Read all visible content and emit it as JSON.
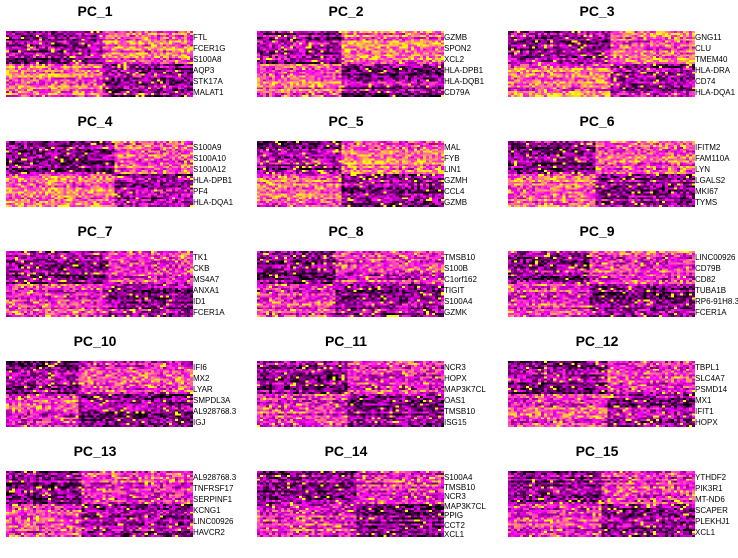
{
  "chart_data": {
    "type": "heatmap",
    "colors": {
      "low": "#000000",
      "mid": "#ff00ff",
      "high": "#ffff00"
    },
    "panels": [
      {
        "title": "PC_1",
        "genes": [
          "FTL",
          "FCER1G",
          "S100A8",
          "AQP3",
          "STK17A",
          "MALAT1"
        ]
      },
      {
        "title": "PC_2",
        "genes": [
          "GZMB",
          "SPON2",
          "XCL2",
          "HLA-DPB1",
          "HLA-DQB1",
          "CD79A"
        ]
      },
      {
        "title": "PC_3",
        "genes": [
          "GNG11",
          "CLU",
          "TMEM40",
          "HLA-DRA",
          "CD74",
          "HLA-DQA1"
        ]
      },
      {
        "title": "PC_4",
        "genes": [
          "S100A9",
          "S100A10",
          "S100A12",
          "HLA-DPB1",
          "PF4",
          "HLA-DQA1"
        ]
      },
      {
        "title": "PC_5",
        "genes": [
          "MAL",
          "FYB",
          "LIN1",
          "GZMH",
          "CCL4",
          "GZMB"
        ]
      },
      {
        "title": "PC_6",
        "genes": [
          "IFITM2",
          "FAM110A",
          "LYN",
          "LGALS2",
          "MKI67",
          "TYMS"
        ]
      },
      {
        "title": "PC_7",
        "genes": [
          "TK1",
          "CKB",
          "MS4A7",
          "ANXA1",
          "ID1",
          "FCER1A"
        ]
      },
      {
        "title": "PC_8",
        "genes": [
          "TMSB10",
          "S100B",
          "C1orf162",
          "TIGIT",
          "S100A4",
          "GZMK"
        ]
      },
      {
        "title": "PC_9",
        "genes": [
          "LINC00926",
          "CD79B",
          "CD82",
          "TUBA1B",
          "RP6-91H8.3",
          "FCER1A"
        ]
      },
      {
        "title": "PC_10",
        "genes": [
          "IFI6",
          "MX2",
          "LYAR",
          "SMPDL3A",
          "AL928768.3",
          "IGJ"
        ]
      },
      {
        "title": "PC_11",
        "genes": [
          "NCR3",
          "HOPX",
          "MAP3K7CL",
          "OAS1",
          "TMSB10",
          "ISG15"
        ]
      },
      {
        "title": "PC_12",
        "genes": [
          "TBPL1",
          "SLC4A7",
          "PSMD14",
          "MX1",
          "IFIT1",
          "HOPX"
        ]
      },
      {
        "title": "PC_13",
        "genes": [
          "AL928768.3",
          "TNFRSF17",
          "SERPINF1",
          "KCNG1",
          "LINC00926",
          "HAVCR2"
        ]
      },
      {
        "title": "PC_14",
        "genes": [
          "S100A4",
          "TMSB10",
          "NCR3",
          "MAP3K7CL",
          "PPIG",
          "CCT2",
          "XCL1"
        ]
      },
      {
        "title": "PC_15",
        "genes": [
          "YTHDF2",
          "PIK3R1",
          "MT-ND6",
          "SCAPER",
          "PLEKHJ1",
          "XCL1"
        ]
      }
    ]
  }
}
